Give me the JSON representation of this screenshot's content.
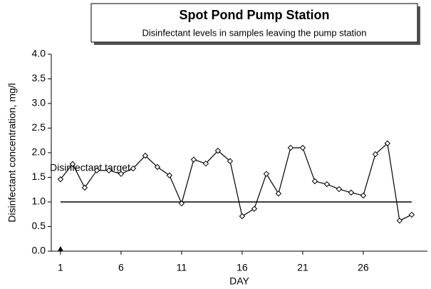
{
  "chart_data": {
    "type": "line",
    "title": "Spot Pond Pump Station",
    "subtitle": "Disinfectant levels in samples leaving the pump station",
    "xlabel": "DAY",
    "ylabel": "Disinfectant concentration, mg/l",
    "annotation": "Disinfectant target",
    "target": 1.0,
    "reference_marker": {
      "x": 1,
      "y": 0
    },
    "color": "#000000",
    "x": [
      1,
      2,
      3,
      4,
      5,
      6,
      7,
      8,
      9,
      10,
      11,
      12,
      13,
      14,
      15,
      16,
      17,
      18,
      19,
      20,
      21,
      22,
      23,
      24,
      25,
      26,
      27,
      28,
      29,
      30
    ],
    "values": [
      1.46,
      1.77,
      1.29,
      1.64,
      1.64,
      1.57,
      1.68,
      1.94,
      1.71,
      1.54,
      0.97,
      1.86,
      1.78,
      2.04,
      1.83,
      0.71,
      0.86,
      1.57,
      1.17,
      2.1,
      2.1,
      1.42,
      1.36,
      1.26,
      1.19,
      1.13,
      1.97,
      2.19,
      0.62,
      0.74
    ],
    "xlim": [
      0.24,
      31.3
    ],
    "xticks": [
      1,
      6,
      11,
      16,
      21,
      26
    ],
    "ylim": [
      0,
      4
    ],
    "yticks": [
      {
        "value": 0,
        "label": "0.0"
      },
      0.5,
      {
        "value": 1,
        "label": "1.0"
      },
      1.5,
      {
        "value": 2,
        "label": "2.0"
      },
      2.5,
      {
        "value": 3,
        "label": "3.0"
      },
      3.5,
      {
        "value": 4,
        "label": "4.0"
      }
    ]
  }
}
